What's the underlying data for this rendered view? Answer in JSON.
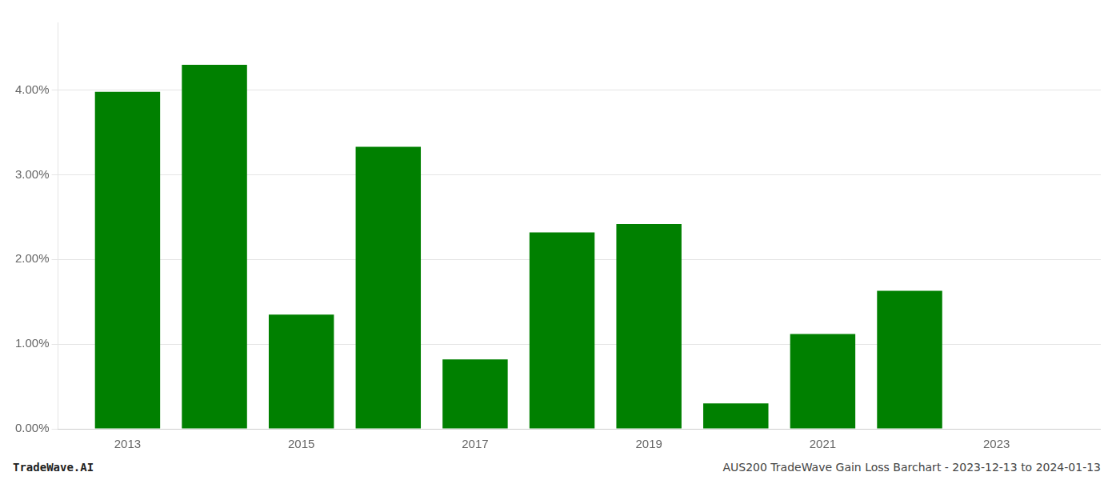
{
  "chart_data": {
    "type": "bar",
    "x": [
      2013,
      2014,
      2015,
      2016,
      2017,
      2018,
      2019,
      2020,
      2021,
      2022,
      2023
    ],
    "values": [
      0.0398,
      0.043,
      0.0135,
      0.0333,
      0.0082,
      0.0232,
      0.0242,
      0.003,
      0.0112,
      0.0163,
      0.0
    ],
    "color": "#008000",
    "xlim": [
      2012.2,
      2024.2
    ],
    "xticks": [
      2013,
      2015,
      2017,
      2019,
      2021,
      2023
    ],
    "ylim": [
      0,
      0.048
    ],
    "yticks": [
      {
        "value": 0.0,
        "label": "0.00%"
      },
      {
        "value": 0.01,
        "label": "1.00%"
      },
      {
        "value": 0.02,
        "label": "2.00%"
      },
      {
        "value": 0.03,
        "label": "3.00%"
      },
      {
        "value": 0.04,
        "label": "4.00%"
      }
    ],
    "grid": "y",
    "annotations": [
      "TradeWave.AI",
      "AUS200 TradeWave Gain Loss Barchart - 2023-12-13 to 2024-01-13"
    ]
  }
}
